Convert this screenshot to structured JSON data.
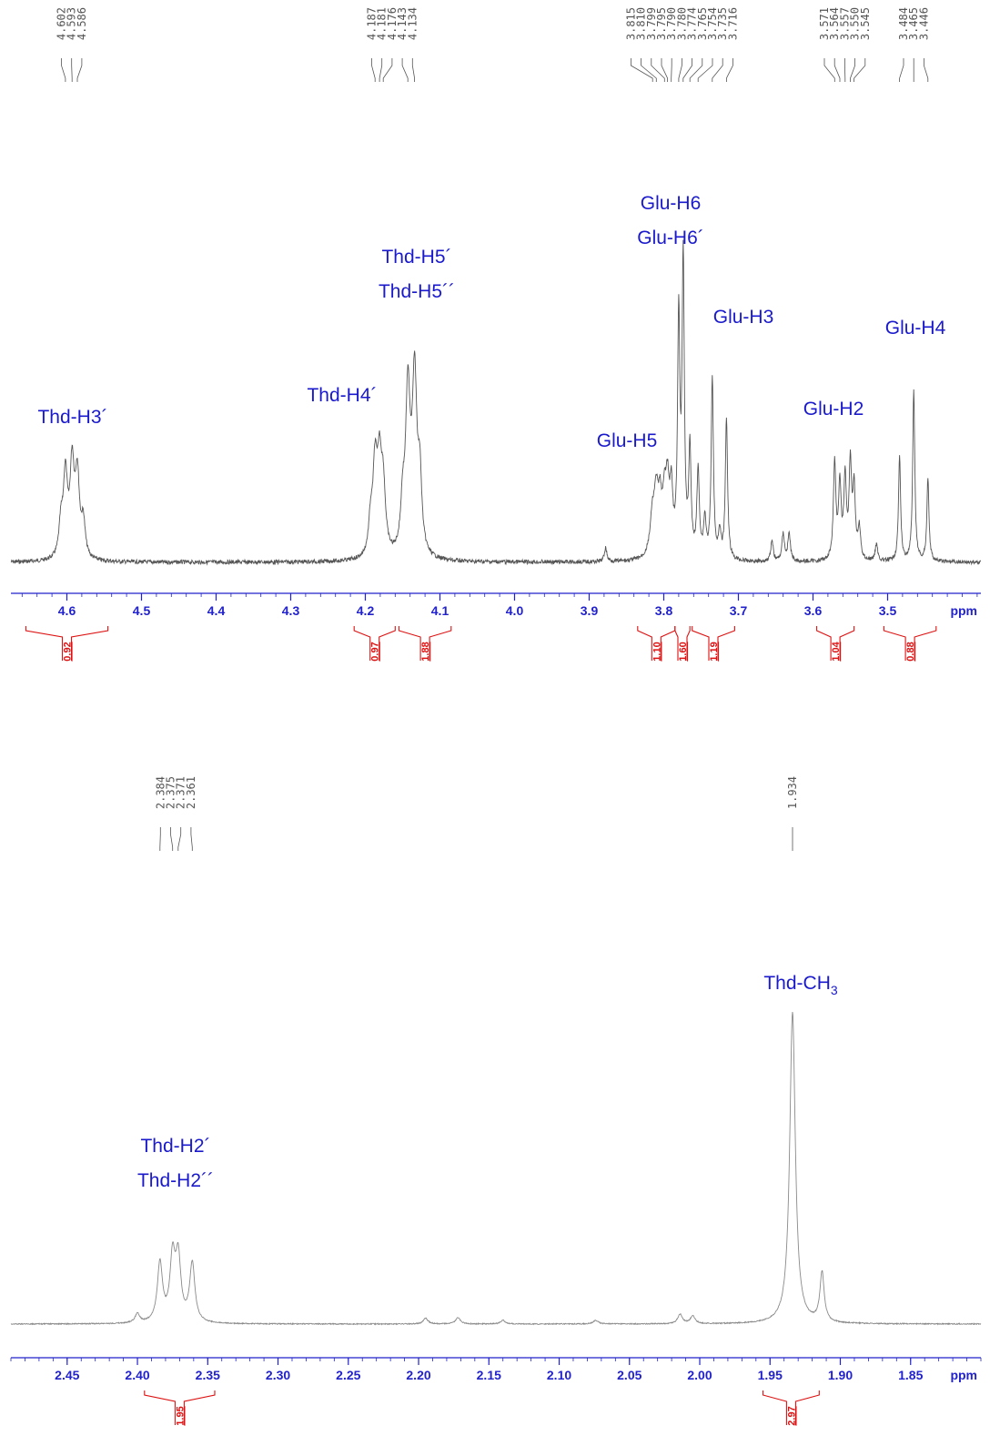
{
  "chart_data": [
    {
      "type": "line",
      "panel": "top",
      "xlabel": "ppm",
      "xlim": [
        4.675,
        3.375
      ],
      "x_ticks": [
        4.6,
        4.5,
        4.4,
        4.3,
        4.2,
        4.1,
        4.0,
        3.9,
        3.8,
        3.7,
        3.6,
        3.5
      ],
      "x_tick_labels": [
        "4.6",
        "4.5",
        "4.4",
        "4.3",
        "4.2",
        "4.1",
        "4.0",
        "3.9",
        "3.8",
        "3.7",
        "3.6",
        "3.5"
      ],
      "peak_labels": [
        "4.602",
        "4.593",
        "4.586",
        "4.187",
        "4.181",
        "4.176",
        "4.143",
        "4.134",
        "3.815",
        "3.810",
        "3.799",
        "3.795",
        "3.790",
        "3.780",
        "3.774",
        "3.765",
        "3.754",
        "3.735",
        "3.716",
        "3.571",
        "3.564",
        "3.557",
        "3.550",
        "3.545",
        "3.484",
        "3.465",
        "3.446"
      ],
      "assignments": [
        {
          "lines": [
            "Thd-H3´"
          ],
          "ppm": 4.59
        },
        {
          "lines": [
            "Thd-H4´"
          ],
          "ppm": 4.2
        },
        {
          "lines": [
            "Thd-H5´",
            "Thd-H5´´"
          ],
          "ppm": 4.14
        },
        {
          "lines": [
            "Glu-H5"
          ],
          "ppm": 3.81
        },
        {
          "lines": [
            "Glu-H6",
            "Glu-H6´"
          ],
          "ppm": 3.78
        },
        {
          "lines": [
            "Glu-H3"
          ],
          "ppm": 3.72
        },
        {
          "lines": [
            "Glu-H2"
          ],
          "ppm": 3.56
        },
        {
          "lines": [
            "Glu-H4"
          ],
          "ppm": 3.47
        }
      ],
      "integrals": [
        {
          "from": 4.655,
          "to": 4.545,
          "value": "0.92"
        },
        {
          "from": 4.215,
          "to": 4.16,
          "value": "0.97"
        },
        {
          "from": 4.155,
          "to": 4.085,
          "value": "1.88"
        },
        {
          "from": 3.835,
          "to": 3.785,
          "value": "1.10"
        },
        {
          "from": 3.785,
          "to": 3.765,
          "value": "1.60"
        },
        {
          "from": 3.762,
          "to": 3.705,
          "value": "1.19"
        },
        {
          "from": 3.595,
          "to": 3.545,
          "value": "1.04"
        },
        {
          "from": 3.505,
          "to": 3.435,
          "value": "0.88"
        }
      ],
      "peaks": [
        {
          "ppm": 4.602,
          "h": 0.47,
          "w": 0.0034
        },
        {
          "ppm": 4.593,
          "h": 0.52,
          "w": 0.0034
        },
        {
          "ppm": 4.586,
          "h": 0.46,
          "w": 0.0034
        },
        {
          "ppm": 4.608,
          "h": 0.18,
          "w": 0.003
        },
        {
          "ppm": 4.578,
          "h": 0.2,
          "w": 0.003
        },
        {
          "ppm": 4.187,
          "h": 0.5,
          "w": 0.0035
        },
        {
          "ppm": 4.181,
          "h": 0.48,
          "w": 0.0035
        },
        {
          "ppm": 4.176,
          "h": 0.36,
          "w": 0.0035
        },
        {
          "ppm": 4.193,
          "h": 0.18,
          "w": 0.003
        },
        {
          "ppm": 4.143,
          "h": 0.92,
          "w": 0.0038
        },
        {
          "ppm": 4.134,
          "h": 1.0,
          "w": 0.0038
        },
        {
          "ppm": 4.127,
          "h": 0.4,
          "w": 0.003
        },
        {
          "ppm": 4.15,
          "h": 0.25,
          "w": 0.003
        },
        {
          "ppm": 3.815,
          "h": 0.24,
          "w": 0.004
        },
        {
          "ppm": 3.81,
          "h": 0.3,
          "w": 0.003
        },
        {
          "ppm": 3.805,
          "h": 0.28,
          "w": 0.003
        },
        {
          "ppm": 3.799,
          "h": 0.3,
          "w": 0.003
        },
        {
          "ppm": 3.795,
          "h": 0.34,
          "w": 0.0025
        },
        {
          "ppm": 3.79,
          "h": 0.36,
          "w": 0.0025
        },
        {
          "ppm": 3.78,
          "h": 1.35,
          "w": 0.0018
        },
        {
          "ppm": 3.774,
          "h": 1.7,
          "w": 0.0018
        },
        {
          "ppm": 3.765,
          "h": 0.62,
          "w": 0.0018
        },
        {
          "ppm": 3.754,
          "h": 0.5,
          "w": 0.002
        },
        {
          "ppm": 3.745,
          "h": 0.22,
          "w": 0.002
        },
        {
          "ppm": 3.735,
          "h": 1.04,
          "w": 0.0018
        },
        {
          "ppm": 3.716,
          "h": 0.82,
          "w": 0.0018
        },
        {
          "ppm": 3.725,
          "h": 0.14,
          "w": 0.002
        },
        {
          "ppm": 3.655,
          "h": 0.12,
          "w": 0.002
        },
        {
          "ppm": 3.64,
          "h": 0.16,
          "w": 0.002
        },
        {
          "ppm": 3.632,
          "h": 0.16,
          "w": 0.002
        },
        {
          "ppm": 3.571,
          "h": 0.56,
          "w": 0.002
        },
        {
          "ppm": 3.564,
          "h": 0.42,
          "w": 0.002
        },
        {
          "ppm": 3.557,
          "h": 0.46,
          "w": 0.002
        },
        {
          "ppm": 3.55,
          "h": 0.54,
          "w": 0.002
        },
        {
          "ppm": 3.545,
          "h": 0.4,
          "w": 0.002
        },
        {
          "ppm": 3.538,
          "h": 0.18,
          "w": 0.002
        },
        {
          "ppm": 3.515,
          "h": 0.1,
          "w": 0.002
        },
        {
          "ppm": 3.484,
          "h": 0.6,
          "w": 0.0017
        },
        {
          "ppm": 3.465,
          "h": 0.98,
          "w": 0.0017
        },
        {
          "ppm": 3.446,
          "h": 0.48,
          "w": 0.0017
        },
        {
          "ppm": 3.878,
          "h": 0.08,
          "w": 0.002
        }
      ]
    },
    {
      "type": "line",
      "panel": "bottom",
      "xlabel": "ppm",
      "xlim": [
        2.49,
        1.8
      ],
      "x_ticks": [
        2.45,
        2.4,
        2.35,
        2.3,
        2.25,
        2.2,
        2.15,
        2.1,
        2.05,
        2.0,
        1.95,
        1.9,
        1.85
      ],
      "x_tick_labels": [
        "2.45",
        "2.40",
        "2.35",
        "2.30",
        "2.25",
        "2.20",
        "2.15",
        "2.10",
        "2.05",
        "2.00",
        "1.95",
        "1.90",
        "1.85"
      ],
      "peak_labels": [
        "2.384",
        "2.375",
        "2.371",
        "2.361",
        "1.934"
      ],
      "assignments": [
        {
          "lines": [
            "Thd-H2´",
            "Thd-H2´´"
          ],
          "ppm": 2.37
        },
        {
          "lines": [
            "Thd-CH",
            "3"
          ],
          "ppm": 1.934,
          "subscript": true
        }
      ],
      "integrals": [
        {
          "from": 2.395,
          "to": 2.345,
          "value": "1.95"
        },
        {
          "from": 1.955,
          "to": 1.915,
          "value": "2.97"
        }
      ],
      "peaks": [
        {
          "ppm": 2.384,
          "h": 0.19,
          "w": 0.0022
        },
        {
          "ppm": 2.375,
          "h": 0.2,
          "w": 0.0022
        },
        {
          "ppm": 2.371,
          "h": 0.2,
          "w": 0.0022
        },
        {
          "ppm": 2.361,
          "h": 0.19,
          "w": 0.0022
        },
        {
          "ppm": 2.4,
          "h": 0.03,
          "w": 0.002
        },
        {
          "ppm": 2.195,
          "h": 0.018,
          "w": 0.002
        },
        {
          "ppm": 2.172,
          "h": 0.02,
          "w": 0.002
        },
        {
          "ppm": 2.14,
          "h": 0.012,
          "w": 0.002
        },
        {
          "ppm": 2.074,
          "h": 0.012,
          "w": 0.002
        },
        {
          "ppm": 2.014,
          "h": 0.03,
          "w": 0.002
        },
        {
          "ppm": 2.005,
          "h": 0.025,
          "w": 0.002
        },
        {
          "ppm": 1.934,
          "h": 1.0,
          "w": 0.0024
        },
        {
          "ppm": 1.913,
          "h": 0.16,
          "w": 0.0018
        }
      ]
    }
  ]
}
